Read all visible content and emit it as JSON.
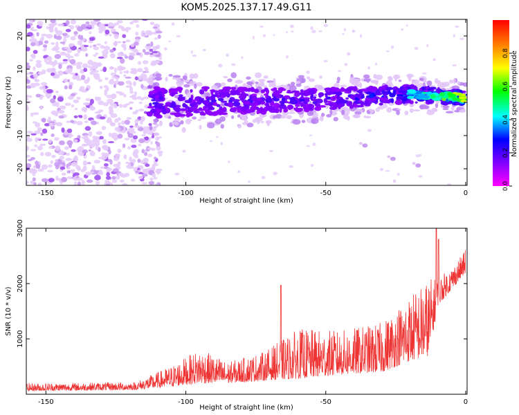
{
  "title": "KOM5.2025.137.17.49.G11",
  "chart_data": [
    {
      "type": "heatmap",
      "xlabel": "Height of straight line (km)",
      "ylabel": "Frequency (Hz)",
      "xlim": [
        -157,
        0.5
      ],
      "ylim": [
        -25,
        25
      ],
      "xticks": [
        -150,
        -100,
        -50,
        0
      ],
      "yticks": [
        -20,
        -10,
        0,
        10,
        20
      ],
      "colorbar": {
        "label": "Normalized spectral amplitude",
        "range": [
          0,
          1
        ],
        "ticks": [
          "0.0",
          "0.2",
          "0.4",
          "0.6",
          "0.8"
        ],
        "colormap": [
          "#ff00ff",
          "#8000ff",
          "#0000ff",
          "#00ffff",
          "#00ff00",
          "#ffff00",
          "#ff8000",
          "#ff0000"
        ]
      },
      "ridge": {
        "x_start": -113,
        "x_end": 0,
        "center_freq": [
          [
            -113,
            0
          ],
          [
            -80,
            0.5
          ],
          [
            -50,
            1
          ],
          [
            -20,
            2.5
          ],
          [
            0,
            1.5
          ]
        ],
        "peak_amplitude": [
          [
            -113,
            0.25
          ],
          [
            -80,
            0.22
          ],
          [
            -50,
            0.25
          ],
          [
            -25,
            0.38
          ],
          [
            -10,
            0.6
          ],
          [
            0,
            0.8
          ]
        ]
      },
      "noise_region": {
        "x_start": -157,
        "x_end": -113,
        "amplitude": 0.05
      },
      "secondary_branch": [
        [
          -36,
          -13
        ],
        [
          -26,
          -17
        ],
        [
          -17,
          -19
        ]
      ]
    },
    {
      "type": "line",
      "xlabel": "Height of straight line (km)",
      "ylabel": "SNR (10 * v/v)",
      "xlim": [
        -157,
        0.5
      ],
      "ylim": [
        0,
        3000
      ],
      "xticks": [
        -150,
        -100,
        -50,
        0
      ],
      "yticks": [
        1000,
        2000,
        3000
      ],
      "color": "#ee3333",
      "envelope": [
        {
          "x": -157,
          "base": 60,
          "amp": 140
        },
        {
          "x": -118,
          "base": 80,
          "amp": 140
        },
        {
          "x": -105,
          "base": 140,
          "amp": 380
        },
        {
          "x": -95,
          "base": 200,
          "amp": 620
        },
        {
          "x": -85,
          "base": 200,
          "amp": 380
        },
        {
          "x": -72,
          "base": 250,
          "amp": 520
        },
        {
          "x": -60,
          "base": 280,
          "amp": 900
        },
        {
          "x": -45,
          "base": 350,
          "amp": 800
        },
        {
          "x": -30,
          "base": 400,
          "amp": 900
        },
        {
          "x": -20,
          "base": 600,
          "amp": 1200
        },
        {
          "x": -13,
          "base": 700,
          "amp": 1400
        },
        {
          "x": -10,
          "base": 1600,
          "amp": 500
        },
        {
          "x": -5,
          "base": 1900,
          "amp": 400
        },
        {
          "x": 0,
          "base": 2200,
          "amp": 400
        }
      ],
      "spikes": [
        {
          "x": -66,
          "y": 1970
        },
        {
          "x": -10.5,
          "y": 3050
        },
        {
          "x": -9.7,
          "y": 2800
        },
        {
          "x": 0,
          "y": 2600
        }
      ]
    }
  ]
}
